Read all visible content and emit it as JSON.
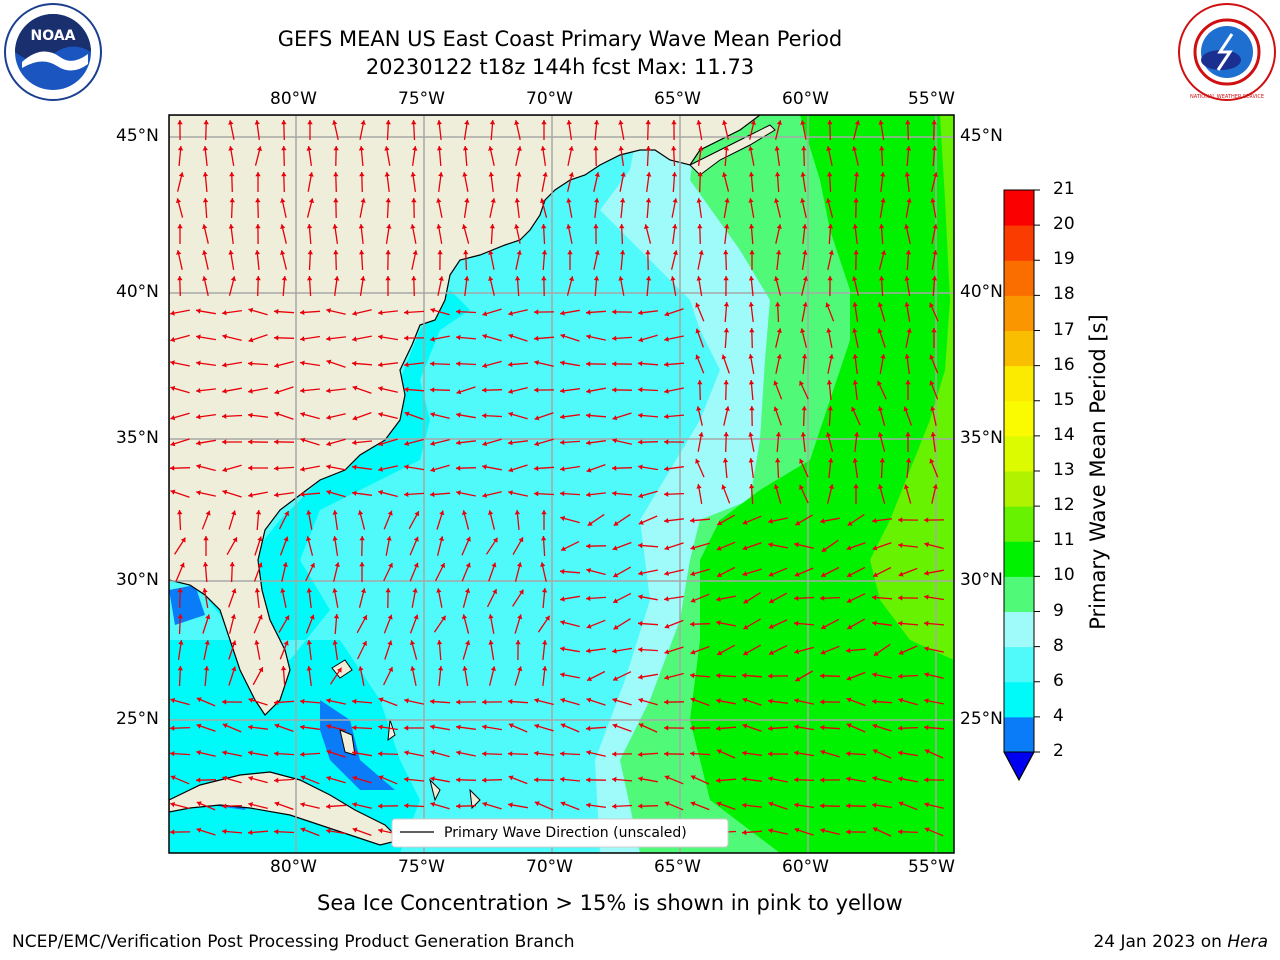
{
  "title": {
    "line1": "GEFS MEAN US East Coast Primary Wave Mean Period",
    "line2": "20230122 t18z 144h fcst   Max: 11.73"
  },
  "logos": {
    "noaa": {
      "text": "NOAA",
      "icon": "noaa-logo-icon"
    },
    "nws": {
      "text": "NATIONAL WEATHER SERVICE",
      "icon": "nws-logo-icon"
    }
  },
  "map": {
    "lon_ticks": [
      "80°W",
      "75°W",
      "70°W",
      "65°W",
      "60°W",
      "55°W"
    ],
    "lat_ticks": [
      "45°N",
      "40°N",
      "35°N",
      "30°N",
      "25°N"
    ],
    "lon_values": [
      -80,
      -75,
      -70,
      -65,
      -60,
      -55
    ],
    "lat_values": [
      45,
      40,
      35,
      30,
      25
    ],
    "extent": {
      "lon_min": -85,
      "lon_max": -54.7,
      "lat_min": 20.5,
      "lat_max": 46
    },
    "legend_label": "Primary Wave Direction (unscaled)",
    "arrow_color": "#e8000b",
    "land_color": "#efeedb",
    "grid": true
  },
  "colorbar": {
    "label": "Primary Wave Mean Period [s]",
    "ticks": [
      "2",
      "4",
      "6",
      "8",
      "9",
      "10",
      "11",
      "12",
      "13",
      "14",
      "15",
      "16",
      "17",
      "18",
      "19",
      "20",
      "21"
    ],
    "colors": [
      "#0b7cf8",
      "#00fafa",
      "#50fafa",
      "#9ffafa",
      "#50fa78",
      "#00f200",
      "#66f200",
      "#b0f200",
      "#dcfa00",
      "#fafa00",
      "#faeb00",
      "#fabe00",
      "#fa9600",
      "#fa6e00",
      "#fa3c00",
      "#fa0000"
    ],
    "extend_below_color": "#0000f0"
  },
  "subnote": "Sea Ice Concentration > 15% is shown in pink to yellow",
  "footer": {
    "left": "NCEP/EMC/Verification Post Processing Product Generation Branch",
    "right_date": "24 Jan 2023 on ",
    "right_host": "Hera"
  }
}
